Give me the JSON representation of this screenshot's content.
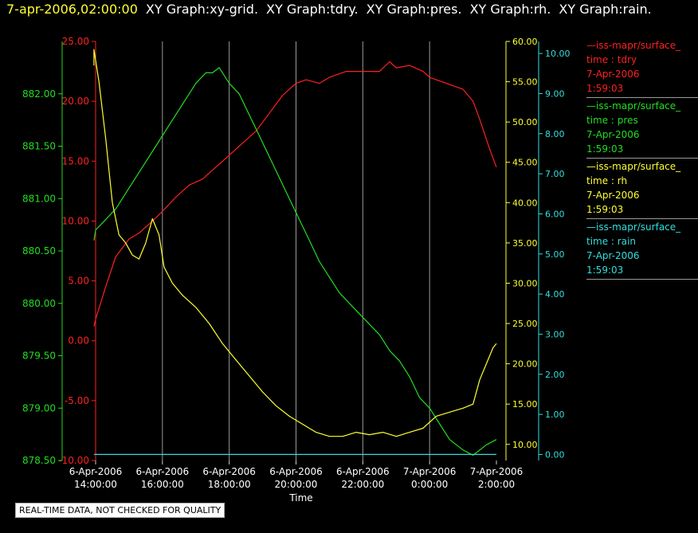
{
  "header": {
    "timestamp": "7-apr-2006,02:00:00",
    "graph_titles": [
      "XY Graph:xy-grid.",
      "XY Graph:tdry.",
      "XY Graph:pres.",
      "XY Graph:rh.",
      "XY Graph:rain."
    ]
  },
  "legend": [
    {
      "name": "—iss-mapr/surface_",
      "var": "time : tdry",
      "date": "7-Apr-2006",
      "time": "1:59:03",
      "color": "#ff2020"
    },
    {
      "name": "—iss-mapr/surface_",
      "var": "time : pres",
      "date": "7-Apr-2006",
      "time": "1:59:03",
      "color": "#22dd22"
    },
    {
      "name": "—iss-mapr/surface_",
      "var": "time : rh",
      "date": "7-Apr-2006",
      "time": "1:59:03",
      "color": "#ffff33"
    },
    {
      "name": "—iss-mapr/surface_",
      "var": "time : rain",
      "date": "7-Apr-2006",
      "time": "1:59:03",
      "color": "#33dddd"
    }
  ],
  "footer_note": "REAL-TIME DATA, NOT CHECKED FOR QUALITY",
  "chart_data": {
    "type": "line",
    "xlabel": "Time",
    "x_ticks": [
      {
        "h": 14,
        "l1": "6-Apr-2006",
        "l2": "14:00:00"
      },
      {
        "h": 16,
        "l1": "6-Apr-2006",
        "l2": "16:00:00"
      },
      {
        "h": 18,
        "l1": "6-Apr-2006",
        "l2": "18:00:00"
      },
      {
        "h": 20,
        "l1": "6-Apr-2006",
        "l2": "20:00:00"
      },
      {
        "h": 22,
        "l1": "6-Apr-2006",
        "l2": "22:00:00"
      },
      {
        "h": 24,
        "l1": "7-Apr-2006",
        "l2": "0:00:00"
      },
      {
        "h": 26,
        "l1": "7-Apr-2006",
        "l2": "2:00:00"
      }
    ],
    "xlim": [
      14,
      26
    ],
    "grid": "vertical",
    "axes": [
      {
        "id": "tdry",
        "color": "#ff2020",
        "ylim": [
          -10,
          25
        ],
        "ticks": [
          "-10.00",
          "-5.00",
          "0.00",
          "5.00",
          "10.00",
          "15.00",
          "20.00",
          "25.00"
        ]
      },
      {
        "id": "pres",
        "color": "#22dd22",
        "ylim": [
          878.5,
          882.5
        ],
        "ticks": [
          "878.50",
          "879.00",
          "879.50",
          "880.00",
          "880.50",
          "881.00",
          "881.50",
          "882.00"
        ]
      },
      {
        "id": "rh",
        "color": "#ffff33",
        "ylim": [
          8,
          60
        ],
        "ticks": [
          "10.00",
          "15.00",
          "20.00",
          "25.00",
          "30.00",
          "35.00",
          "40.00",
          "45.00",
          "50.00",
          "55.00",
          "60.00"
        ]
      },
      {
        "id": "rain",
        "color": "#33dddd",
        "ylim": [
          -0.15,
          10.3
        ],
        "ticks": [
          "0.00",
          "1.00",
          "2.00",
          "3.00",
          "4.00",
          "5.00",
          "6.00",
          "7.00",
          "8.00",
          "9.00",
          "10.00"
        ]
      }
    ],
    "series": [
      {
        "axis": "tdry",
        "x": [
          13.7,
          14.0,
          14.3,
          14.6,
          15.0,
          15.3,
          15.7,
          16.0,
          16.4,
          16.8,
          17.2,
          17.6,
          18.0,
          18.4,
          18.8,
          19.2,
          19.6,
          20.0,
          20.3,
          20.7,
          21.0,
          21.5,
          22.0,
          22.5,
          22.8,
          23.0,
          23.4,
          23.8,
          24.0,
          24.5,
          25.0,
          25.3,
          25.5,
          25.8,
          26.0
        ],
        "y": [
          1.2,
          1.8,
          4.5,
          7.0,
          8.5,
          9.0,
          10.0,
          10.8,
          12.0,
          13.0,
          13.5,
          14.5,
          15.5,
          16.5,
          17.5,
          19.0,
          20.5,
          21.5,
          21.8,
          21.5,
          22.0,
          22.5,
          22.5,
          22.5,
          23.3,
          22.8,
          23.0,
          22.5,
          22.0,
          21.5,
          21.0,
          20.0,
          18.5,
          16.0,
          14.5
        ]
      },
      {
        "axis": "pres",
        "x": [
          13.7,
          14.0,
          14.3,
          14.6,
          15.0,
          15.4,
          15.8,
          16.2,
          16.6,
          17.0,
          17.3,
          17.5,
          17.7,
          18.0,
          18.3,
          18.6,
          18.9,
          19.2,
          19.5,
          19.8,
          20.1,
          20.4,
          20.7,
          21.0,
          21.3,
          21.6,
          21.9,
          22.2,
          22.5,
          22.8,
          23.1,
          23.4,
          23.7,
          24.0,
          24.3,
          24.6,
          25.0,
          25.3,
          25.7,
          26.0
        ],
        "y": [
          880.6,
          880.7,
          880.8,
          880.9,
          881.1,
          881.3,
          881.5,
          881.7,
          881.9,
          882.1,
          882.2,
          882.2,
          882.25,
          882.1,
          882.0,
          881.8,
          881.6,
          881.4,
          881.2,
          881.0,
          880.8,
          880.6,
          880.4,
          880.25,
          880.1,
          880.0,
          879.9,
          879.8,
          879.7,
          879.55,
          879.45,
          879.3,
          879.1,
          879.0,
          878.85,
          878.7,
          878.6,
          878.55,
          878.65,
          878.7
        ]
      },
      {
        "axis": "rh",
        "x": [
          13.7,
          13.9,
          14.1,
          14.3,
          14.5,
          14.7,
          14.9,
          15.1,
          15.3,
          15.5,
          15.7,
          15.9,
          16.05,
          16.3,
          16.6,
          17.0,
          17.4,
          17.8,
          18.2,
          18.6,
          19.0,
          19.4,
          19.8,
          20.2,
          20.6,
          21.0,
          21.4,
          21.8,
          22.2,
          22.6,
          23.0,
          23.4,
          23.8,
          24.2,
          24.6,
          25.0,
          25.3,
          25.5,
          25.7,
          25.9,
          26.0
        ],
        "y": [
          57.0,
          59.0,
          55.0,
          48.0,
          40.0,
          36.0,
          35.0,
          33.5,
          33.0,
          35.0,
          38.0,
          36.0,
          32.0,
          30.0,
          28.5,
          27.0,
          25.0,
          22.5,
          20.5,
          18.5,
          16.5,
          14.8,
          13.5,
          12.5,
          11.5,
          11.0,
          11.0,
          11.5,
          11.2,
          11.5,
          11.0,
          11.5,
          12.0,
          13.5,
          14.0,
          14.5,
          15.0,
          18.0,
          20.0,
          22.0,
          22.5
        ]
      },
      {
        "axis": "rain",
        "x": [
          13.7,
          26.0
        ],
        "y": [
          0.0,
          0.0
        ]
      }
    ]
  }
}
